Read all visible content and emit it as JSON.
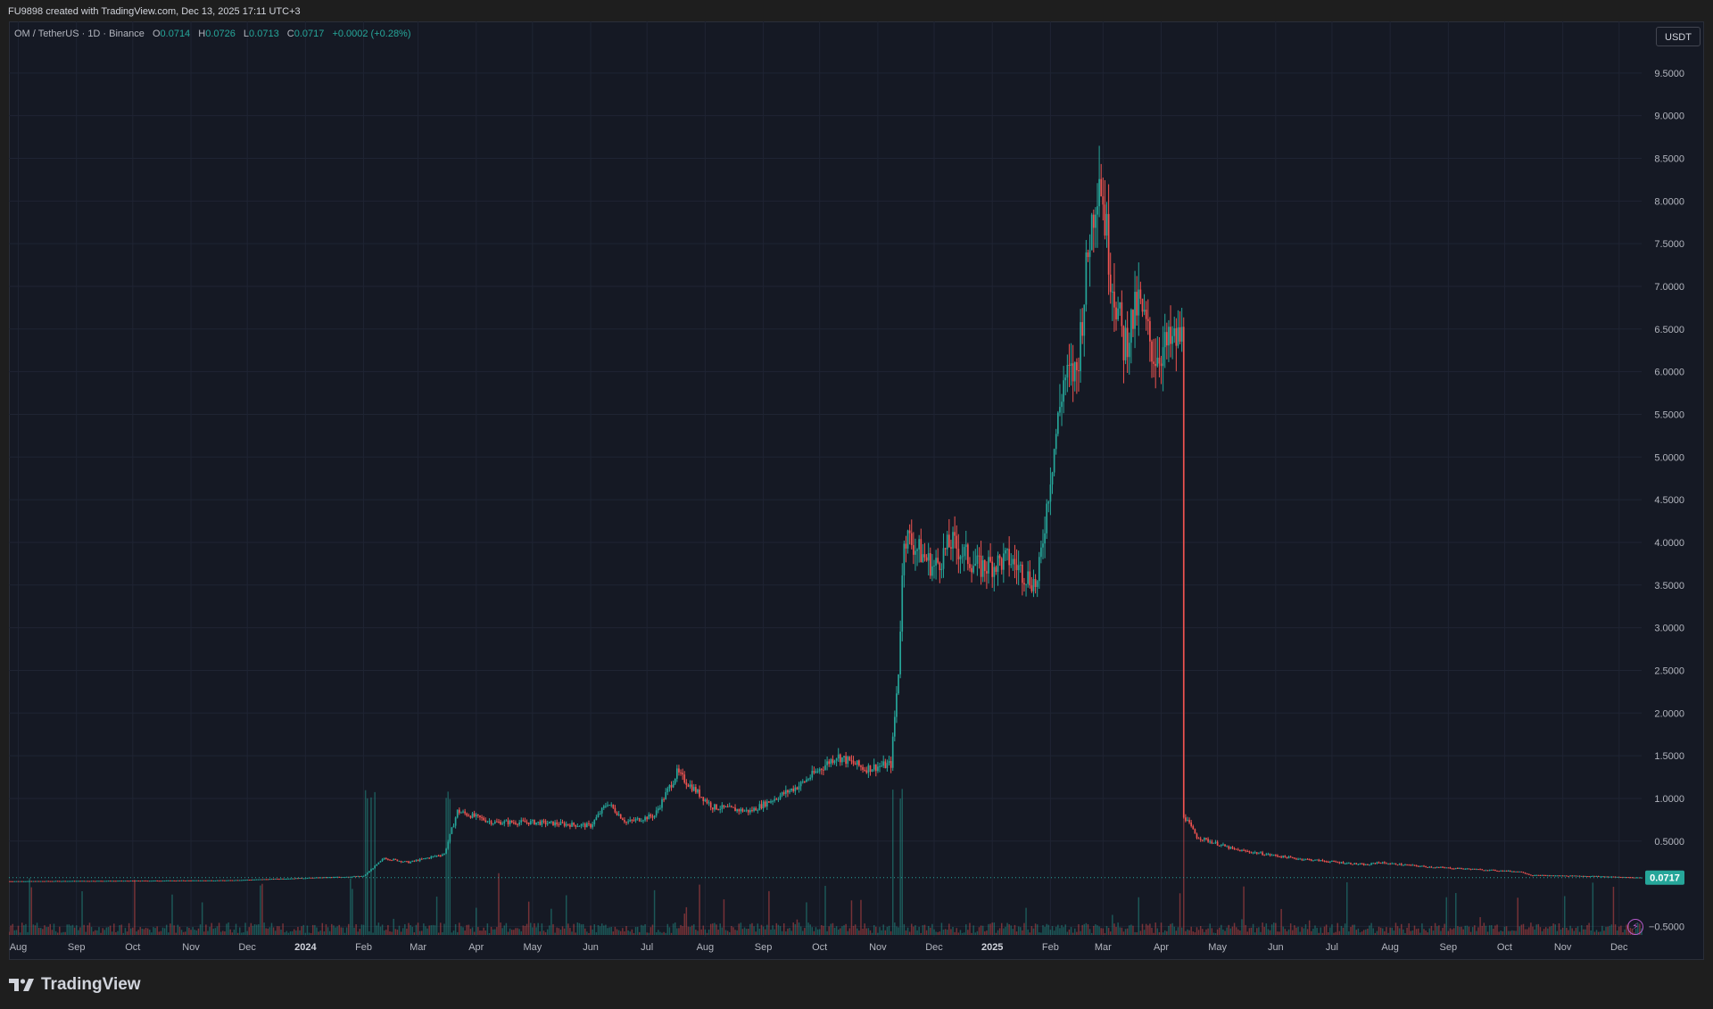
{
  "header": {
    "title": "FU9898 created with TradingView.com, Dec 13, 2025 17:11 UTC+3"
  },
  "legend": {
    "symbol": "OM / TetherUS · 1D · Binance",
    "open_label": "O",
    "open": "0.0714",
    "high_label": "H",
    "high": "0.0726",
    "low_label": "L",
    "low": "0.0713",
    "close_label": "C",
    "close": "0.0717",
    "change": "+0.0002 (+0.28%)"
  },
  "currency_button": "USDT",
  "brand": "TradingView",
  "colors": {
    "up": "#26a69a",
    "down": "#ef5350",
    "background": "#151924",
    "grid": "#1f2433",
    "text": "#b2b5be"
  },
  "chart_data": {
    "type": "candlestick",
    "symbol": "OM / TetherUS",
    "interval": "1D",
    "exchange": "Binance",
    "y_ticks": [
      9.5,
      9.0,
      8.5,
      8.0,
      7.5,
      7.0,
      6.5,
      6.0,
      5.5,
      5.0,
      4.5,
      4.0,
      3.5,
      3.0,
      2.5,
      2.0,
      1.5,
      1.0,
      0.5,
      -0.5
    ],
    "y_tick_labels": [
      "9.5000",
      "9.0000",
      "8.5000",
      "8.0000",
      "7.5000",
      "7.0000",
      "6.5000",
      "6.0000",
      "5.5000",
      "5.0000",
      "4.5000",
      "4.0000",
      "3.5000",
      "3.0000",
      "2.5000",
      "2.0000",
      "1.5000",
      "1.0000",
      "0.5000",
      "−0.5000"
    ],
    "ylim": [
      -0.6,
      10.0
    ],
    "x_range": [
      "2023-07-27",
      "2025-12-13"
    ],
    "x_ticks": [
      {
        "date": "2023-08-01",
        "label": "Aug"
      },
      {
        "date": "2023-09-01",
        "label": "Sep"
      },
      {
        "date": "2023-10-01",
        "label": "Oct"
      },
      {
        "date": "2023-11-01",
        "label": "Nov"
      },
      {
        "date": "2023-12-01",
        "label": "Dec"
      },
      {
        "date": "2024-01-01",
        "label": "2024"
      },
      {
        "date": "2024-02-01",
        "label": "Feb"
      },
      {
        "date": "2024-03-01",
        "label": "Mar"
      },
      {
        "date": "2024-04-01",
        "label": "Apr"
      },
      {
        "date": "2024-05-01",
        "label": "May"
      },
      {
        "date": "2024-06-01",
        "label": "Jun"
      },
      {
        "date": "2024-07-01",
        "label": "Jul"
      },
      {
        "date": "2024-08-01",
        "label": "Aug"
      },
      {
        "date": "2024-09-01",
        "label": "Sep"
      },
      {
        "date": "2024-10-01",
        "label": "Oct"
      },
      {
        "date": "2024-11-01",
        "label": "Nov"
      },
      {
        "date": "2024-12-01",
        "label": "Dec"
      },
      {
        "date": "2025-01-01",
        "label": "2025"
      },
      {
        "date": "2025-02-01",
        "label": "Feb"
      },
      {
        "date": "2025-03-01",
        "label": "Mar"
      },
      {
        "date": "2025-04-01",
        "label": "Apr"
      },
      {
        "date": "2025-05-01",
        "label": "May"
      },
      {
        "date": "2025-06-01",
        "label": "Jun"
      },
      {
        "date": "2025-07-01",
        "label": "Jul"
      },
      {
        "date": "2025-08-01",
        "label": "Aug"
      },
      {
        "date": "2025-09-01",
        "label": "Sep"
      },
      {
        "date": "2025-10-01",
        "label": "Oct"
      },
      {
        "date": "2025-11-01",
        "label": "Nov"
      },
      {
        "date": "2025-12-01",
        "label": "Dec"
      }
    ],
    "close_path": [
      {
        "date": "2023-07-27",
        "close": 0.03
      },
      {
        "date": "2023-11-20",
        "close": 0.04
      },
      {
        "date": "2023-12-20",
        "close": 0.06
      },
      {
        "date": "2024-01-20",
        "close": 0.08
      },
      {
        "date": "2024-02-01",
        "close": 0.09
      },
      {
        "date": "2024-02-12",
        "close": 0.3
      },
      {
        "date": "2024-02-25",
        "close": 0.25
      },
      {
        "date": "2024-03-15",
        "close": 0.35
      },
      {
        "date": "2024-03-22",
        "close": 0.85
      },
      {
        "date": "2024-04-10",
        "close": 0.72
      },
      {
        "date": "2024-05-01",
        "close": 0.72
      },
      {
        "date": "2024-06-01",
        "close": 0.68
      },
      {
        "date": "2024-06-10",
        "close": 0.95
      },
      {
        "date": "2024-06-20",
        "close": 0.72
      },
      {
        "date": "2024-07-05",
        "close": 0.8
      },
      {
        "date": "2024-07-17",
        "close": 1.3
      },
      {
        "date": "2024-08-05",
        "close": 0.9
      },
      {
        "date": "2024-08-25",
        "close": 0.85
      },
      {
        "date": "2024-09-20",
        "close": 1.15
      },
      {
        "date": "2024-10-10",
        "close": 1.5
      },
      {
        "date": "2024-10-25",
        "close": 1.35
      },
      {
        "date": "2024-11-08",
        "close": 1.4
      },
      {
        "date": "2024-11-12",
        "close": 2.5
      },
      {
        "date": "2024-11-15",
        "close": 4.1
      },
      {
        "date": "2024-12-01",
        "close": 3.7
      },
      {
        "date": "2024-12-10",
        "close": 4.0
      },
      {
        "date": "2024-12-25",
        "close": 3.7
      },
      {
        "date": "2025-01-10",
        "close": 3.8
      },
      {
        "date": "2025-01-25",
        "close": 3.5
      },
      {
        "date": "2025-02-01",
        "close": 4.8
      },
      {
        "date": "2025-02-08",
        "close": 5.9
      },
      {
        "date": "2025-02-15",
        "close": 6.0
      },
      {
        "date": "2025-02-22",
        "close": 7.6
      },
      {
        "date": "2025-02-27",
        "close": 8.4
      },
      {
        "date": "2025-03-05",
        "close": 7.2
      },
      {
        "date": "2025-03-12",
        "close": 6.3
      },
      {
        "date": "2025-03-20",
        "close": 6.8
      },
      {
        "date": "2025-03-28",
        "close": 6.2
      },
      {
        "date": "2025-04-05",
        "close": 6.3
      },
      {
        "date": "2025-04-12",
        "close": 6.4
      },
      {
        "date": "2025-04-13",
        "close": 0.8
      },
      {
        "date": "2025-04-20",
        "close": 0.55
      },
      {
        "date": "2025-05-10",
        "close": 0.4
      },
      {
        "date": "2025-06-10",
        "close": 0.3
      },
      {
        "date": "2025-07-20",
        "close": 0.22
      },
      {
        "date": "2025-07-25",
        "close": 0.25
      },
      {
        "date": "2025-08-20",
        "close": 0.2
      },
      {
        "date": "2025-10-10",
        "close": 0.14
      },
      {
        "date": "2025-10-15",
        "close": 0.1
      },
      {
        "date": "2025-11-15",
        "close": 0.09
      },
      {
        "date": "2025-12-13",
        "close": 0.0717
      }
    ],
    "last_price": 0.0717,
    "last_price_label": "0.0717",
    "has_volume": true,
    "grid": true
  }
}
